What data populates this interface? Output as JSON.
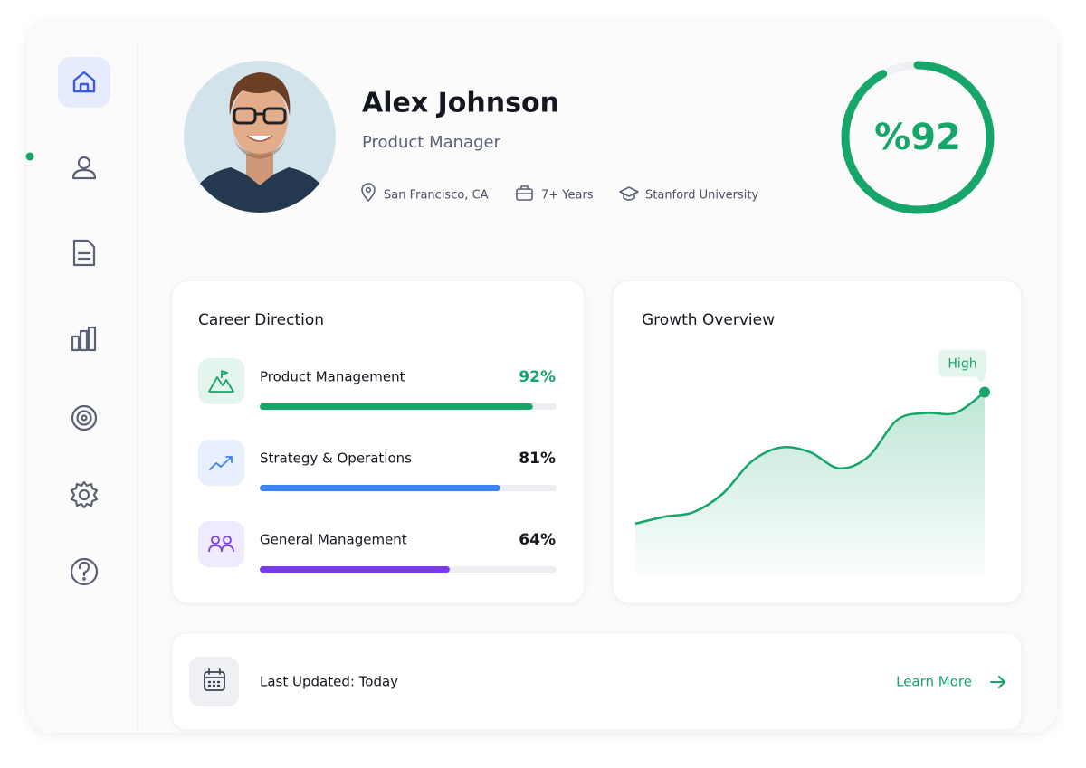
{
  "profile": {
    "name": "Alex Johnson",
    "role": "Product Manager",
    "meta": [
      "San Francisco, CA",
      "7+ Years",
      "Stanford University"
    ],
    "score": {
      "value": 92,
      "label": "%92",
      "color": "#16a66a"
    }
  },
  "career": {
    "title": "Career Direction",
    "items": [
      {
        "name": "Product Management",
        "value": 92,
        "label": "92%",
        "color": "#16a66a"
      },
      {
        "name": "Strategy & Operations",
        "value": 81,
        "label": "81%",
        "color": "#3b82f6"
      },
      {
        "name": "General Management",
        "value": 64,
        "label": "64%",
        "color": "#7c3aed"
      }
    ]
  },
  "growth": {
    "title": "Growth Overview",
    "peak_label": "High",
    "color": "#16a66a",
    "values": [
      22,
      25,
      27,
      35,
      49,
      55,
      53,
      46,
      51,
      67,
      70,
      70,
      79
    ],
    "ylim": [
      0,
      100
    ]
  },
  "footer": {
    "status": "Last Updated: Today",
    "link": "Learn More"
  }
}
